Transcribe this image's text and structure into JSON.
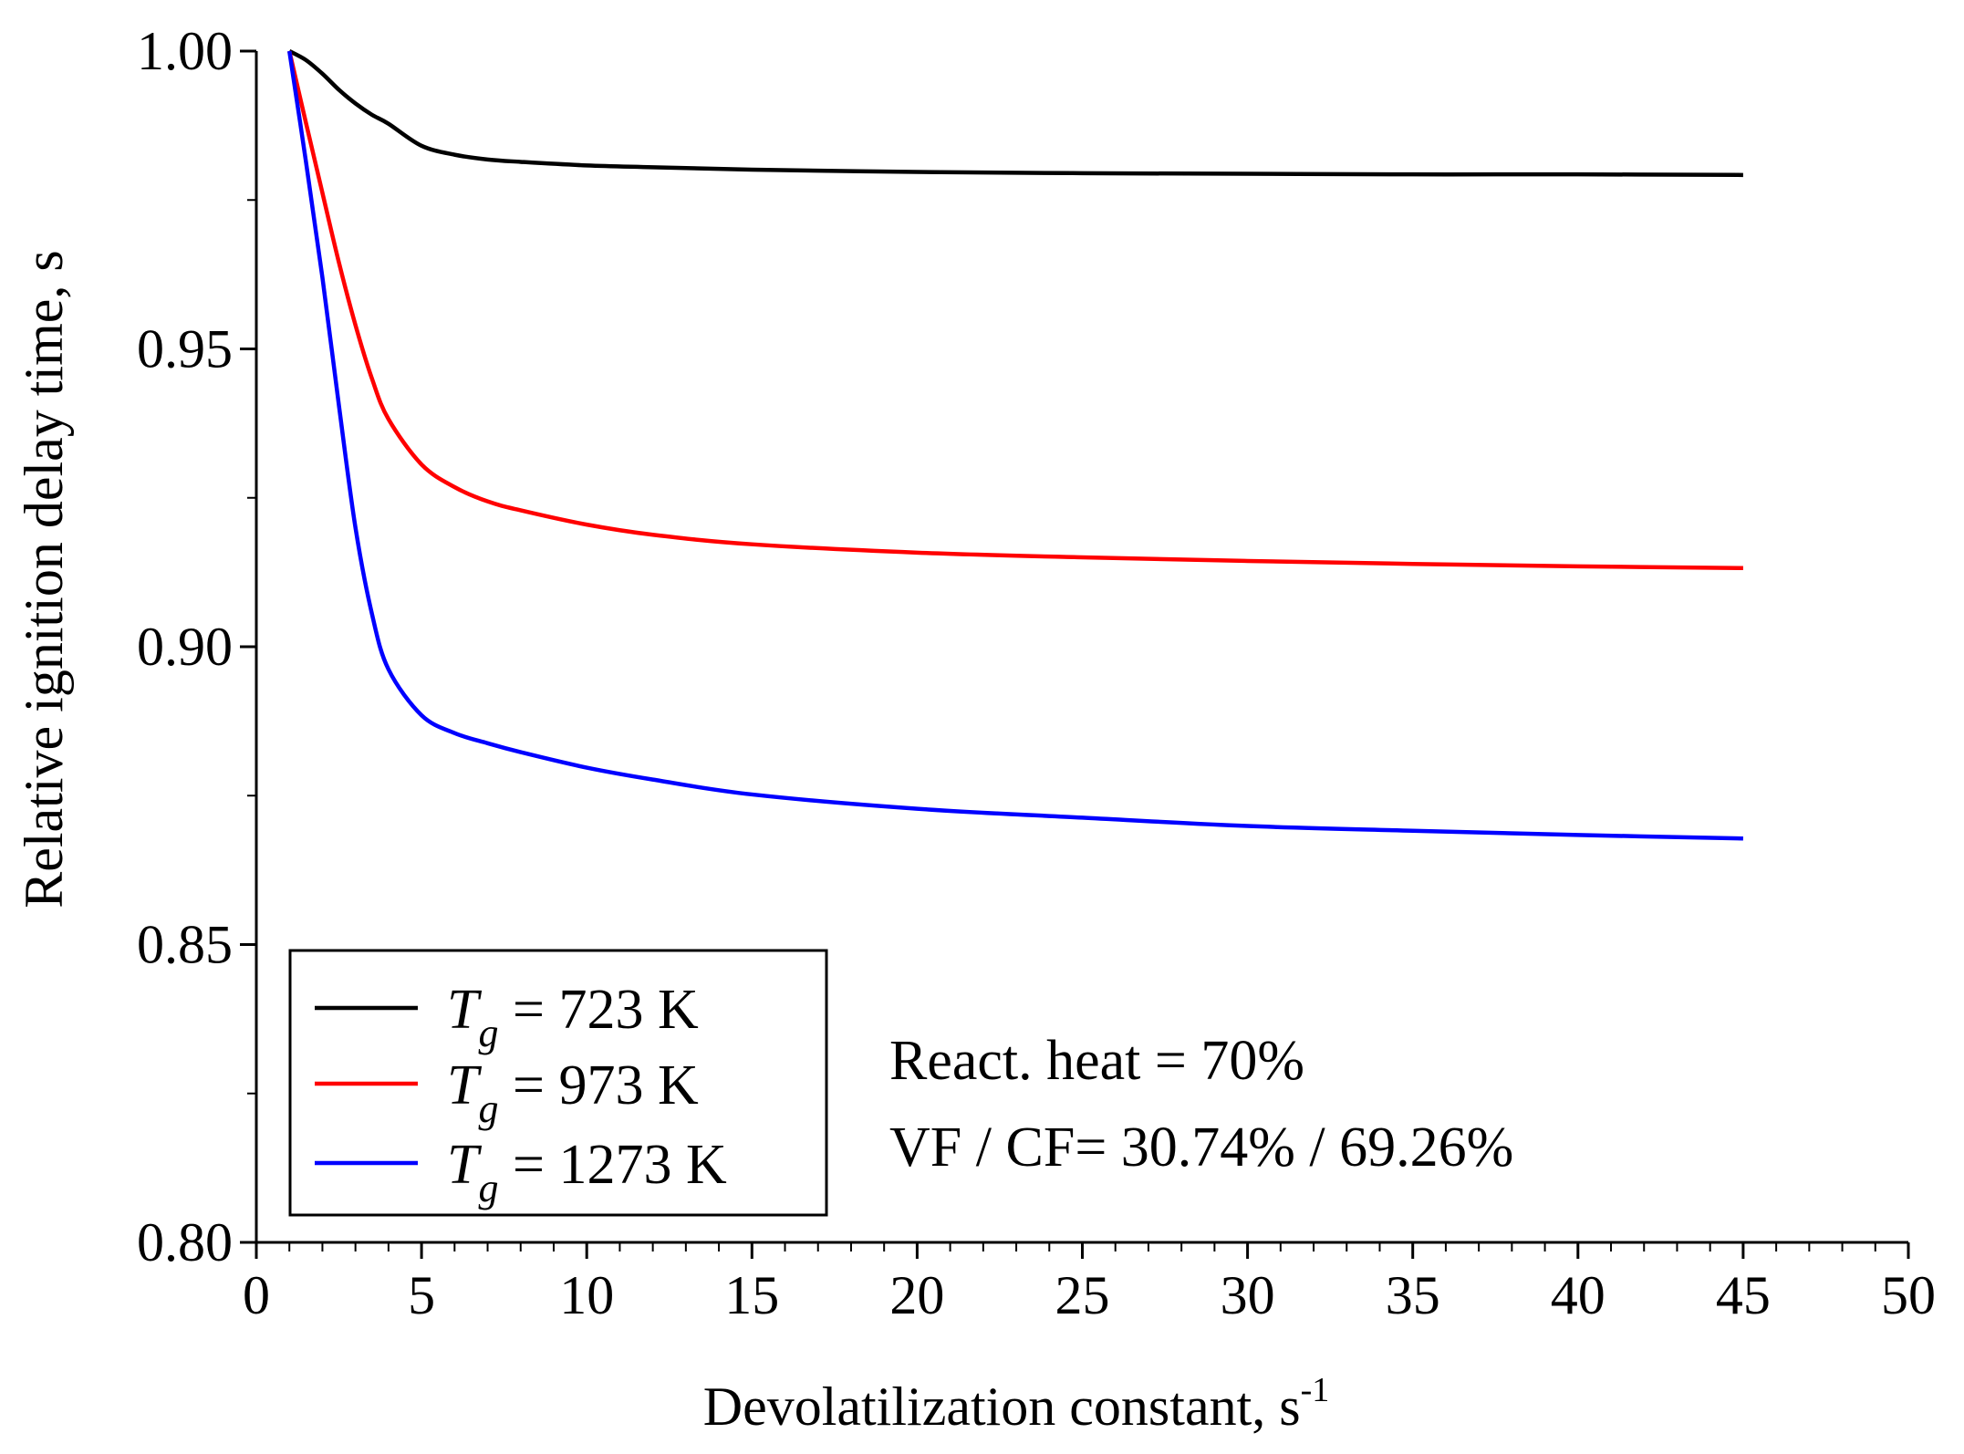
{
  "chart_data": {
    "type": "line",
    "title": "",
    "xlabel": "Devolatilization constant, s",
    "xlabel_sup": "-1",
    "ylabel": "Relative ignition delay time, s",
    "xlim": [
      0,
      50
    ],
    "ylim": [
      0.8,
      1.0
    ],
    "x_ticks": [
      "0",
      "5",
      "10",
      "15",
      "20",
      "25",
      "30",
      "35",
      "40",
      "45",
      "50"
    ],
    "y_ticks": [
      "0.80",
      "0.85",
      "0.90",
      "0.95",
      "1.00"
    ],
    "grid": false,
    "legend_position": "bottom-left",
    "series": [
      {
        "name": "723 K",
        "legend_label": {
          "symbol": "T",
          "sub": "g",
          "text": " = 723 K"
        },
        "color": "#000000",
        "x": [
          1,
          1.5,
          2,
          2.5,
          3,
          3.5,
          4,
          5,
          6,
          7,
          8,
          10,
          12,
          15,
          20,
          25,
          30,
          35,
          40,
          45
        ],
        "y": [
          1.0,
          0.9985,
          0.9962,
          0.9935,
          0.9912,
          0.9893,
          0.9878,
          0.9841,
          0.9826,
          0.9818,
          0.9814,
          0.9808,
          0.9805,
          0.9801,
          0.9797,
          0.9795,
          0.9794,
          0.9793,
          0.9793,
          0.9792
        ]
      },
      {
        "name": "973 K",
        "legend_label": {
          "symbol": "T",
          "sub": "g",
          "text": " = 973 K"
        },
        "color": "#ff0000",
        "x": [
          1,
          1.5,
          2,
          2.5,
          3,
          3.5,
          4,
          5,
          6,
          7,
          8,
          10,
          12,
          15,
          20,
          25,
          30,
          35,
          40,
          45
        ],
        "y": [
          1.0,
          0.988,
          0.9762,
          0.9645,
          0.954,
          0.945,
          0.9382,
          0.9306,
          0.9268,
          0.9244,
          0.9229,
          0.9205,
          0.9188,
          0.9172,
          0.9158,
          0.915,
          0.9144,
          0.9139,
          0.9135,
          0.9132
        ]
      },
      {
        "name": "1273 K",
        "legend_label": {
          "symbol": "T",
          "sub": "g",
          "text": " = 1273 K"
        },
        "color": "#0000ff",
        "x": [
          1,
          1.5,
          2,
          2.5,
          3,
          3.5,
          4,
          5,
          6,
          7,
          8,
          10,
          12,
          15,
          20,
          25,
          30,
          35,
          40,
          45
        ],
        "y": [
          1.0,
          0.9815,
          0.962,
          0.9405,
          0.92,
          0.9055,
          0.8962,
          0.8885,
          0.8855,
          0.8838,
          0.8823,
          0.8797,
          0.8777,
          0.8752,
          0.8728,
          0.8713,
          0.8699,
          0.8691,
          0.8684,
          0.8678
        ]
      }
    ],
    "annotations": [
      "React. heat = 70%",
      "VF / CF= 30.74% / 69.26%"
    ]
  }
}
